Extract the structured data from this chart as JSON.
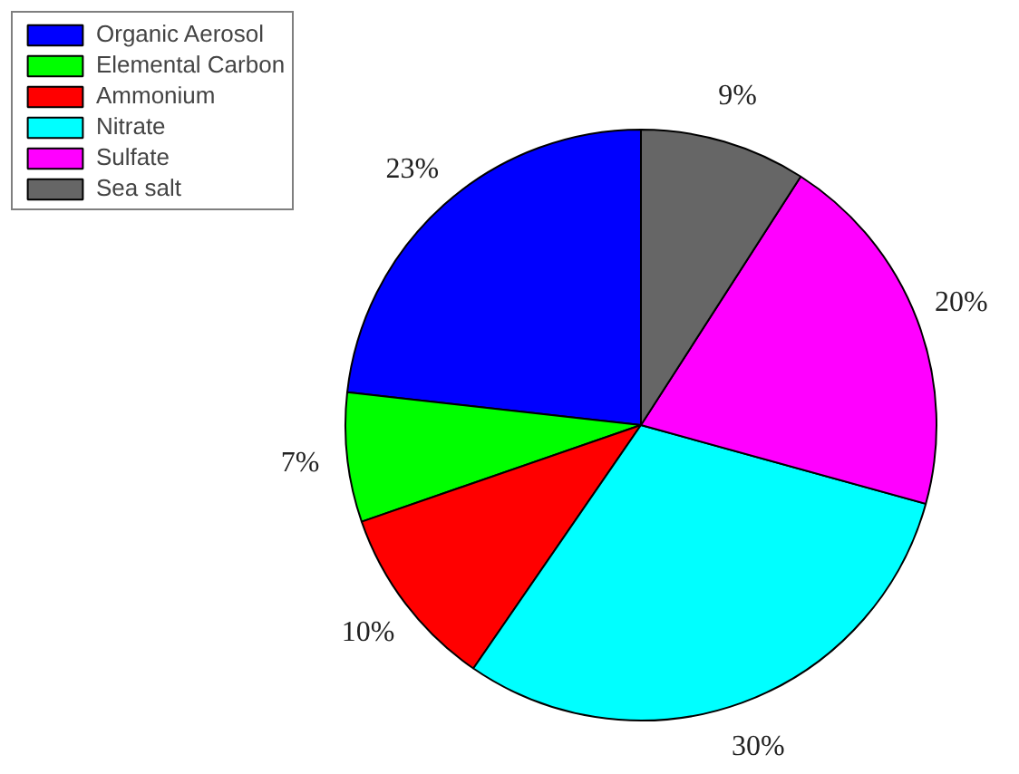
{
  "chart_data": {
    "type": "pie",
    "categories": [
      "Organic Aerosol",
      "Elemental Carbon",
      "Ammonium",
      "Nitrate",
      "Sulfate",
      "Sea salt"
    ],
    "values": [
      23,
      7,
      10,
      30,
      20,
      9
    ],
    "value_labels": [
      "23%",
      "7%",
      "10%",
      "30%",
      "20%",
      "9%"
    ],
    "colors": [
      "#0000ff",
      "#00ff00",
      "#ff0000",
      "#00ffff",
      "#ff00ff",
      "#666666"
    ],
    "legend": "top left"
  }
}
